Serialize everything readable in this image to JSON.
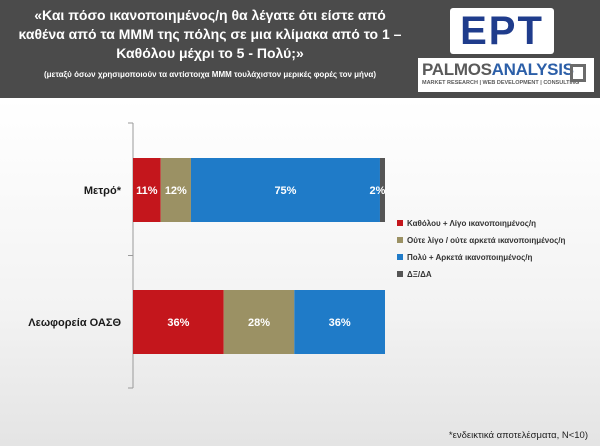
{
  "header": {
    "title": "«Και πόσο ικανοποιημένος/η θα λέγατε ότι είστε από\nκαθένα από τα ΜΜΜ της πόλης σε μια κλίμακα από το 1 –\nΚαθόλου μέχρι το 5 - Πολύ;»",
    "subtitle": "(μεταξύ όσων χρησιμοποιούν τα αντίστοιχα ΜΜΜ τουλάχιστον μερικές φορές τον μήνα)",
    "logo_ert": "ΕΡΤ",
    "logo_palmos_a": "PALMOS",
    "logo_palmos_b": "ANALYSIS",
    "logo_palmos_tagline": "MARKET RESEARCH | WEB DEVELOPMENT | CONSULTING"
  },
  "colors": {
    "header_bg": "#4b4b4b",
    "series": [
      "#c4161c",
      "#9b9164",
      "#1f7bc8",
      "#555555"
    ]
  },
  "chart_data": {
    "type": "bar",
    "orientation": "horizontal",
    "stacked": true,
    "categories": [
      "Μετρό*",
      "Λεωφορεία ΟΑΣΘ"
    ],
    "series": [
      {
        "name": "Καθόλου + Λίγο ικανοποιημένος/η",
        "values": [
          11,
          36
        ]
      },
      {
        "name": "Ούτε λίγο / ούτε αρκετά ικανοποιημένος/η",
        "values": [
          12,
          28
        ]
      },
      {
        "name": "Πολύ + Αρκετά ικανοποιημένος/η",
        "values": [
          75,
          36
        ]
      },
      {
        "name": "ΔΞ/ΔΑ",
        "values": [
          2,
          0
        ]
      }
    ],
    "data_labels": [
      [
        "11%",
        "12%",
        "75%",
        "2%"
      ],
      [
        "36%",
        "28%",
        "36%",
        ""
      ]
    ],
    "xlim": [
      0,
      100
    ],
    "grid": false,
    "legend_position": "right"
  },
  "footnote": "*ενδεικτικά αποτελέσματα, N<10)"
}
